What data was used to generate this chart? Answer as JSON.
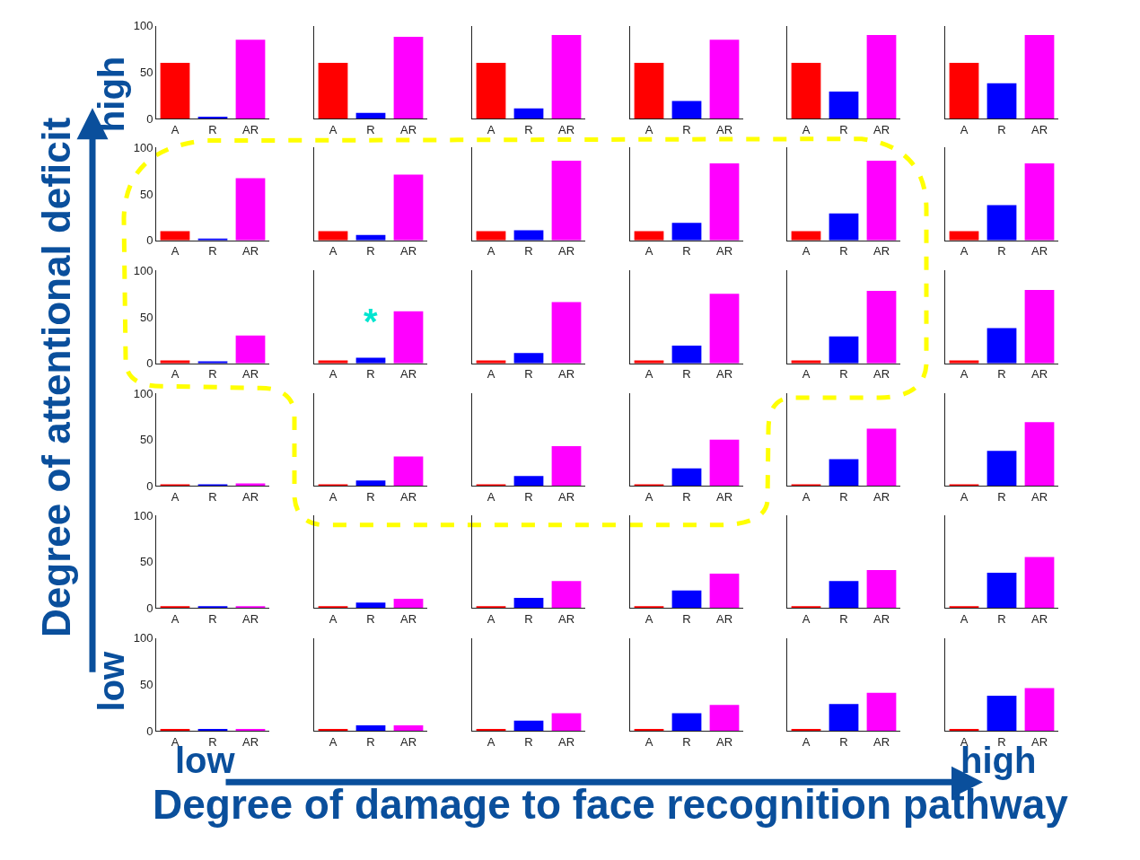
{
  "chart_data": [
    {
      "type": "bar",
      "categories": [
        "A",
        "R",
        "AR"
      ],
      "values": [
        60,
        2,
        85
      ],
      "colors": [
        "#ff0000",
        "#0000ff",
        "#ff00ff"
      ],
      "ylim": [
        0,
        100
      ],
      "yticks": [
        0,
        50,
        100
      ]
    },
    {
      "type": "bar",
      "categories": [
        "A",
        "R",
        "AR"
      ],
      "values": [
        60,
        6,
        88
      ],
      "colors": [
        "#ff0000",
        "#0000ff",
        "#ff00ff"
      ],
      "ylim": [
        0,
        100
      ],
      "tick_labels": "x"
    },
    {
      "type": "bar",
      "categories": [
        "A",
        "R",
        "AR"
      ],
      "values": [
        60,
        11,
        90
      ],
      "colors": [
        "#ff0000",
        "#0000ff",
        "#ff00ff"
      ],
      "ylim": [
        0,
        100
      ],
      "tick_labels": "x"
    },
    {
      "type": "bar",
      "categories": [
        "A",
        "R",
        "AR"
      ],
      "values": [
        60,
        19,
        85
      ],
      "colors": [
        "#ff0000",
        "#0000ff",
        "#ff00ff"
      ],
      "ylim": [
        0,
        100
      ],
      "tick_labels": "x"
    },
    {
      "type": "bar",
      "categories": [
        "A",
        "R",
        "AR"
      ],
      "values": [
        60,
        29,
        90
      ],
      "colors": [
        "#ff0000",
        "#0000ff",
        "#ff00ff"
      ],
      "ylim": [
        0,
        100
      ],
      "tick_labels": "x"
    },
    {
      "type": "bar",
      "categories": [
        "A",
        "R",
        "AR"
      ],
      "values": [
        60,
        38,
        90
      ],
      "colors": [
        "#ff0000",
        "#0000ff",
        "#ff00ff"
      ],
      "ylim": [
        0,
        100
      ],
      "tick_labels": "x"
    },
    {
      "type": "bar",
      "categories": [
        "A",
        "R",
        "AR"
      ],
      "values": [
        10,
        2,
        67
      ],
      "colors": [
        "#ff0000",
        "#0000ff",
        "#ff00ff"
      ],
      "ylim": [
        0,
        100
      ],
      "yticks": [
        0,
        50,
        100
      ]
    },
    {
      "type": "bar",
      "categories": [
        "A",
        "R",
        "AR"
      ],
      "values": [
        10,
        6,
        71
      ],
      "colors": [
        "#ff0000",
        "#0000ff",
        "#ff00ff"
      ],
      "ylim": [
        0,
        100
      ],
      "tick_labels": "x"
    },
    {
      "type": "bar",
      "categories": [
        "A",
        "R",
        "AR"
      ],
      "values": [
        10,
        11,
        86
      ],
      "colors": [
        "#ff0000",
        "#0000ff",
        "#ff00ff"
      ],
      "ylim": [
        0,
        100
      ],
      "tick_labels": "x"
    },
    {
      "type": "bar",
      "categories": [
        "A",
        "R",
        "AR"
      ],
      "values": [
        10,
        19,
        83
      ],
      "colors": [
        "#ff0000",
        "#0000ff",
        "#ff00ff"
      ],
      "ylim": [
        0,
        100
      ],
      "tick_labels": "x"
    },
    {
      "type": "bar",
      "categories": [
        "A",
        "R",
        "AR"
      ],
      "values": [
        10,
        29,
        86
      ],
      "colors": [
        "#ff0000",
        "#0000ff",
        "#ff00ff"
      ],
      "ylim": [
        0,
        100
      ],
      "tick_labels": "x"
    },
    {
      "type": "bar",
      "categories": [
        "A",
        "R",
        "AR"
      ],
      "values": [
        10,
        38,
        83
      ],
      "colors": [
        "#ff0000",
        "#0000ff",
        "#ff00ff"
      ],
      "ylim": [
        0,
        100
      ],
      "tick_labels": "x"
    },
    {
      "type": "bar",
      "categories": [
        "A",
        "R",
        "AR"
      ],
      "values": [
        3,
        2,
        30
      ],
      "colors": [
        "#ff0000",
        "#0000ff",
        "#ff00ff"
      ],
      "ylim": [
        0,
        100
      ],
      "yticks": [
        0,
        50,
        100
      ]
    },
    {
      "type": "bar",
      "categories": [
        "A",
        "R",
        "AR"
      ],
      "values": [
        3,
        6,
        56
      ],
      "colors": [
        "#ff0000",
        "#0000ff",
        "#ff00ff"
      ],
      "ylim": [
        0,
        100
      ],
      "tick_labels": "x",
      "annotations": [
        "*"
      ]
    },
    {
      "type": "bar",
      "categories": [
        "A",
        "R",
        "AR"
      ],
      "values": [
        3,
        11,
        66
      ],
      "colors": [
        "#ff0000",
        "#0000ff",
        "#ff00ff"
      ],
      "ylim": [
        0,
        100
      ],
      "tick_labels": "x"
    },
    {
      "type": "bar",
      "categories": [
        "A",
        "R",
        "AR"
      ],
      "values": [
        3,
        19,
        75
      ],
      "colors": [
        "#ff0000",
        "#0000ff",
        "#ff00ff"
      ],
      "ylim": [
        0,
        100
      ],
      "tick_labels": "x"
    },
    {
      "type": "bar",
      "categories": [
        "A",
        "R",
        "AR"
      ],
      "values": [
        3,
        29,
        78
      ],
      "colors": [
        "#ff0000",
        "#0000ff",
        "#ff00ff"
      ],
      "ylim": [
        0,
        100
      ],
      "tick_labels": "x"
    },
    {
      "type": "bar",
      "categories": [
        "A",
        "R",
        "AR"
      ],
      "values": [
        3,
        38,
        79
      ],
      "colors": [
        "#ff0000",
        "#0000ff",
        "#ff00ff"
      ],
      "ylim": [
        0,
        100
      ],
      "tick_labels": "x"
    },
    {
      "type": "bar",
      "categories": [
        "A",
        "R",
        "AR"
      ],
      "values": [
        2,
        2,
        3
      ],
      "colors": [
        "#ff0000",
        "#0000ff",
        "#ff00ff"
      ],
      "ylim": [
        0,
        100
      ],
      "yticks": [
        0,
        50,
        100
      ]
    },
    {
      "type": "bar",
      "categories": [
        "A",
        "R",
        "AR"
      ],
      "values": [
        2,
        6,
        32
      ],
      "colors": [
        "#ff0000",
        "#0000ff",
        "#ff00ff"
      ],
      "ylim": [
        0,
        100
      ],
      "tick_labels": "x"
    },
    {
      "type": "bar",
      "categories": [
        "A",
        "R",
        "AR"
      ],
      "values": [
        2,
        11,
        43
      ],
      "colors": [
        "#ff0000",
        "#0000ff",
        "#ff00ff"
      ],
      "ylim": [
        0,
        100
      ],
      "tick_labels": "x"
    },
    {
      "type": "bar",
      "categories": [
        "A",
        "R",
        "AR"
      ],
      "values": [
        2,
        19,
        50
      ],
      "colors": [
        "#ff0000",
        "#0000ff",
        "#ff00ff"
      ],
      "ylim": [
        0,
        100
      ],
      "tick_labels": "x"
    },
    {
      "type": "bar",
      "categories": [
        "A",
        "R",
        "AR"
      ],
      "values": [
        2,
        29,
        62
      ],
      "colors": [
        "#ff0000",
        "#0000ff",
        "#ff00ff"
      ],
      "ylim": [
        0,
        100
      ],
      "tick_labels": "x"
    },
    {
      "type": "bar",
      "categories": [
        "A",
        "R",
        "AR"
      ],
      "values": [
        2,
        38,
        69
      ],
      "colors": [
        "#ff0000",
        "#0000ff",
        "#ff00ff"
      ],
      "ylim": [
        0,
        100
      ],
      "tick_labels": "x"
    },
    {
      "type": "bar",
      "categories": [
        "A",
        "R",
        "AR"
      ],
      "values": [
        2,
        2,
        2
      ],
      "colors": [
        "#ff0000",
        "#0000ff",
        "#ff00ff"
      ],
      "ylim": [
        0,
        100
      ],
      "yticks": [
        0,
        50,
        100
      ]
    },
    {
      "type": "bar",
      "categories": [
        "A",
        "R",
        "AR"
      ],
      "values": [
        2,
        6,
        10
      ],
      "colors": [
        "#ff0000",
        "#0000ff",
        "#ff00ff"
      ],
      "ylim": [
        0,
        100
      ],
      "tick_labels": "x"
    },
    {
      "type": "bar",
      "categories": [
        "A",
        "R",
        "AR"
      ],
      "values": [
        2,
        11,
        29
      ],
      "colors": [
        "#ff0000",
        "#0000ff",
        "#ff00ff"
      ],
      "ylim": [
        0,
        100
      ],
      "tick_labels": "x"
    },
    {
      "type": "bar",
      "categories": [
        "A",
        "R",
        "AR"
      ],
      "values": [
        2,
        19,
        37
      ],
      "colors": [
        "#ff0000",
        "#0000ff",
        "#ff00ff"
      ],
      "ylim": [
        0,
        100
      ],
      "tick_labels": "x"
    },
    {
      "type": "bar",
      "categories": [
        "A",
        "R",
        "AR"
      ],
      "values": [
        2,
        29,
        41
      ],
      "colors": [
        "#ff0000",
        "#0000ff",
        "#ff00ff"
      ],
      "ylim": [
        0,
        100
      ],
      "tick_labels": "x"
    },
    {
      "type": "bar",
      "categories": [
        "A",
        "R",
        "AR"
      ],
      "values": [
        2,
        38,
        55
      ],
      "colors": [
        "#ff0000",
        "#0000ff",
        "#ff00ff"
      ],
      "ylim": [
        0,
        100
      ],
      "tick_labels": "x"
    },
    {
      "type": "bar",
      "categories": [
        "A",
        "R",
        "AR"
      ],
      "values": [
        2,
        2,
        2
      ],
      "colors": [
        "#ff0000",
        "#0000ff",
        "#ff00ff"
      ],
      "ylim": [
        0,
        100
      ],
      "yticks": [
        0,
        50,
        100
      ]
    },
    {
      "type": "bar",
      "categories": [
        "A",
        "R",
        "AR"
      ],
      "values": [
        2,
        6,
        6
      ],
      "colors": [
        "#ff0000",
        "#0000ff",
        "#ff00ff"
      ],
      "ylim": [
        0,
        100
      ],
      "tick_labels": "x"
    },
    {
      "type": "bar",
      "categories": [
        "A",
        "R",
        "AR"
      ],
      "values": [
        2,
        11,
        19
      ],
      "colors": [
        "#ff0000",
        "#0000ff",
        "#ff00ff"
      ],
      "ylim": [
        0,
        100
      ],
      "tick_labels": "x"
    },
    {
      "type": "bar",
      "categories": [
        "A",
        "R",
        "AR"
      ],
      "values": [
        2,
        19,
        28
      ],
      "colors": [
        "#ff0000",
        "#0000ff",
        "#ff00ff"
      ],
      "ylim": [
        0,
        100
      ],
      "tick_labels": "x"
    },
    {
      "type": "bar",
      "categories": [
        "A",
        "R",
        "AR"
      ],
      "values": [
        2,
        29,
        41
      ],
      "colors": [
        "#ff0000",
        "#0000ff",
        "#ff00ff"
      ],
      "ylim": [
        0,
        100
      ],
      "tick_labels": "x"
    },
    {
      "type": "bar",
      "categories": [
        "A",
        "R",
        "AR"
      ],
      "values": [
        2,
        38,
        46
      ],
      "colors": [
        "#ff0000",
        "#0000ff",
        "#ff00ff"
      ],
      "ylim": [
        0,
        100
      ],
      "tick_labels": "x"
    },
    {
      "type": "other",
      "xlabel": "Degree of damage to face recognition pathway",
      "ylabel": "Degree of attentional deficit",
      "annotations": [
        "low",
        "high",
        "low",
        "high"
      ]
    }
  ]
}
